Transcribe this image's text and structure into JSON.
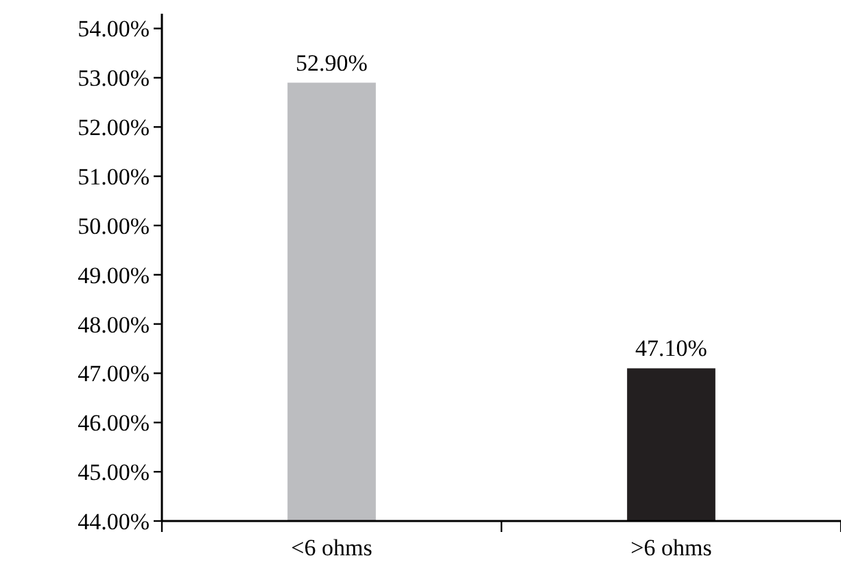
{
  "chart_data": {
    "type": "bar",
    "categories": [
      "<6 ohms",
      ">6 ohms"
    ],
    "values": [
      52.9,
      47.1
    ],
    "colors": [
      "#bcbdc0",
      "#231f20"
    ],
    "value_labels": [
      "52.90%",
      "47.10%"
    ],
    "ylim": [
      44,
      54.3
    ],
    "yticks": [
      {
        "value": 44,
        "label": "44.00%"
      },
      {
        "value": 45,
        "label": "45.00%"
      },
      {
        "value": 46,
        "label": "46.00%"
      },
      {
        "value": 47,
        "label": "47.00%"
      },
      {
        "value": 48,
        "label": "48.00%"
      },
      {
        "value": 49,
        "label": "49.00%"
      },
      {
        "value": 50,
        "label": "50.00%"
      },
      {
        "value": 51,
        "label": "51.00%"
      },
      {
        "value": 52,
        "label": "52.00%"
      },
      {
        "value": 53,
        "label": "53.00%"
      },
      {
        "value": 54,
        "label": "54.00%"
      }
    ],
    "grid": false
  }
}
